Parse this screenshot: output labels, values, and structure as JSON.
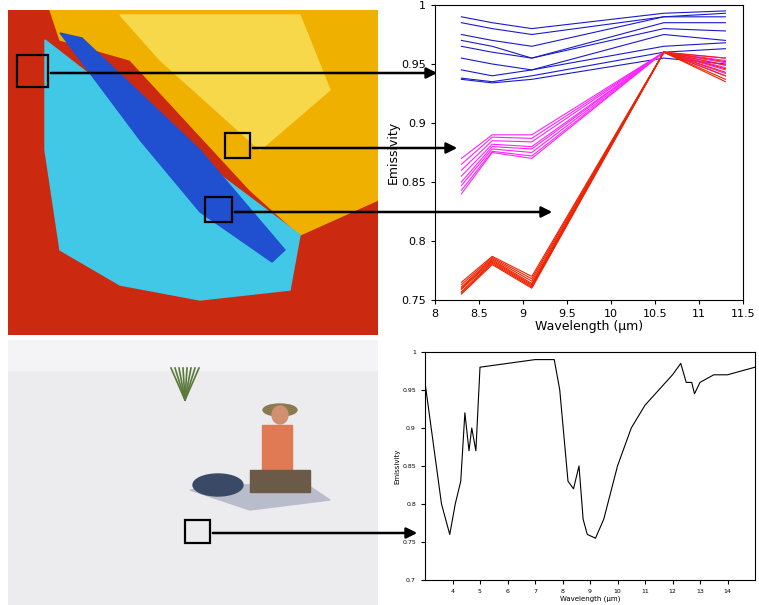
{
  "chart_data": [
    {
      "type": "line",
      "x": [
        8.3,
        8.65,
        9.1,
        10.6,
        11.3
      ],
      "xlim": [
        8,
        11.5
      ],
      "xticks": [
        8,
        8.5,
        9,
        9.5,
        10,
        10.5,
        11,
        11.5
      ],
      "ylim": [
        0.75,
        1
      ],
      "yticks": [
        0.75,
        0.8,
        0.85,
        0.9,
        0.95,
        1
      ],
      "xlabel": "Wavelength (µm)",
      "ylabel": "Emissivity",
      "series": [
        {
          "color": "#1a1acc",
          "values": [
            0.99,
            0.985,
            0.98,
            0.993,
            0.995
          ]
        },
        {
          "color": "#1a1acc",
          "values": [
            0.985,
            0.98,
            0.975,
            0.99,
            0.993
          ]
        },
        {
          "color": "#1a1acc",
          "values": [
            0.975,
            0.97,
            0.965,
            0.99,
            0.99
          ]
        },
        {
          "color": "#1a1acc",
          "values": [
            0.97,
            0.965,
            0.955,
            0.985,
            0.985
          ]
        },
        {
          "color": "#1a1acc",
          "values": [
            0.965,
            0.96,
            0.955,
            0.98,
            0.978
          ]
        },
        {
          "color": "#1a1acc",
          "values": [
            0.955,
            0.95,
            0.945,
            0.975,
            0.97
          ]
        },
        {
          "color": "#1a1acc",
          "values": [
            0.945,
            0.94,
            0.945,
            0.965,
            0.968
          ]
        },
        {
          "color": "#1a1acc",
          "values": [
            0.938,
            0.935,
            0.94,
            0.96,
            0.963
          ]
        },
        {
          "color": "#1a1acc",
          "values": [
            0.937,
            0.934,
            0.937,
            0.955,
            0.95
          ]
        },
        {
          "color": "#ff22ff",
          "values": [
            0.87,
            0.89,
            0.89,
            0.96,
            0.955
          ]
        },
        {
          "color": "#ff22ff",
          "values": [
            0.865,
            0.888,
            0.887,
            0.96,
            0.953
          ]
        },
        {
          "color": "#ff22ff",
          "values": [
            0.86,
            0.885,
            0.884,
            0.96,
            0.951
          ]
        },
        {
          "color": "#ff22ff",
          "values": [
            0.855,
            0.882,
            0.88,
            0.96,
            0.949
          ]
        },
        {
          "color": "#ff22ff",
          "values": [
            0.85,
            0.88,
            0.878,
            0.96,
            0.947
          ]
        },
        {
          "color": "#ff22ff",
          "values": [
            0.847,
            0.878,
            0.875,
            0.96,
            0.945
          ]
        },
        {
          "color": "#ff22ff",
          "values": [
            0.843,
            0.876,
            0.872,
            0.96,
            0.942
          ]
        },
        {
          "color": "#ff22ff",
          "values": [
            0.84,
            0.875,
            0.87,
            0.96,
            0.94
          ]
        },
        {
          "color": "#ee2200",
          "values": [
            0.765,
            0.787,
            0.77,
            0.96,
            0.955
          ]
        },
        {
          "color": "#ee2200",
          "values": [
            0.763,
            0.786,
            0.768,
            0.96,
            0.952
          ]
        },
        {
          "color": "#ee2200",
          "values": [
            0.761,
            0.785,
            0.766,
            0.96,
            0.949
          ]
        },
        {
          "color": "#ee2200",
          "values": [
            0.76,
            0.784,
            0.764,
            0.96,
            0.946
          ]
        },
        {
          "color": "#ee2200",
          "values": [
            0.759,
            0.783,
            0.763,
            0.96,
            0.943
          ]
        },
        {
          "color": "#ee2200",
          "values": [
            0.757,
            0.782,
            0.762,
            0.96,
            0.94
          ]
        },
        {
          "color": "#ee2200",
          "values": [
            0.756,
            0.781,
            0.761,
            0.96,
            0.937
          ]
        },
        {
          "color": "#ee2200",
          "values": [
            0.755,
            0.78,
            0.76,
            0.96,
            0.935
          ]
        }
      ]
    },
    {
      "type": "line",
      "x": [
        3,
        3.3,
        3.6,
        3.9,
        4.1,
        4.3,
        4.45,
        4.6,
        4.7,
        4.85,
        5,
        6,
        7,
        7.7,
        7.9,
        8.2,
        8.4,
        8.6,
        8.75,
        8.9,
        9.2,
        9.5,
        10,
        10.5,
        11,
        11.5,
        12,
        12.3,
        12.5,
        12.7,
        12.8,
        13,
        13.5,
        14,
        15
      ],
      "xlim": [
        3,
        15
      ],
      "xticks": [
        4,
        5,
        6,
        7,
        8,
        9,
        10,
        11,
        12,
        13,
        14
      ],
      "ylim": [
        0.7,
        1
      ],
      "yticks": [
        0.7,
        0.75,
        0.8,
        0.85,
        0.9,
        0.95,
        1
      ],
      "xlabel": "Wavelength (µm)",
      "ylabel": "Emissivity",
      "series": [
        {
          "color": "#000000",
          "values": [
            0.96,
            0.88,
            0.8,
            0.76,
            0.8,
            0.83,
            0.92,
            0.87,
            0.9,
            0.87,
            0.98,
            0.985,
            0.99,
            0.99,
            0.95,
            0.83,
            0.82,
            0.85,
            0.78,
            0.76,
            0.755,
            0.78,
            0.85,
            0.9,
            0.93,
            0.95,
            0.97,
            0.985,
            0.96,
            0.96,
            0.945,
            0.96,
            0.97,
            0.97,
            0.98
          ]
        }
      ]
    }
  ]
}
